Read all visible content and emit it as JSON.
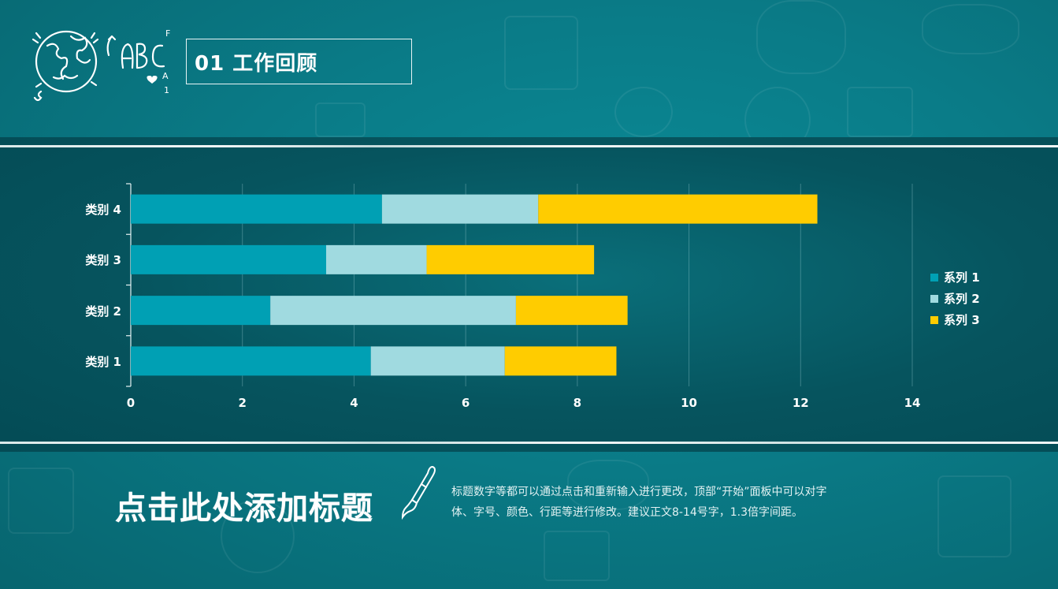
{
  "header": {
    "section_number": "01",
    "section_title": "01 工作回顾",
    "logo_text": "ABC"
  },
  "footer": {
    "heading": "点击此处添加标题",
    "description_line1": "标题数字等都可以通过点击和重新输入进行更改，顶部“开始”面板中可以对字",
    "description_line2": "体、字号、颜色、行距等进行修改。建议正文8-14号字，1.3倍字间距。"
  },
  "colors": {
    "background": "#0a7b87",
    "panel": "#054f59",
    "series1": "#00a0b4",
    "series2": "#a0dae0",
    "series3": "#ffcc00"
  },
  "chart_data": {
    "type": "bar",
    "orientation": "horizontal",
    "stacked": true,
    "title": "",
    "xlabel": "",
    "ylabel": "",
    "categories": [
      "类别 1",
      "类别 2",
      "类别 3",
      "类别 4"
    ],
    "series": [
      {
        "name": "系列 1",
        "color": "#00a0b4",
        "values": [
          4.3,
          2.5,
          3.5,
          4.5
        ]
      },
      {
        "name": "系列 2",
        "color": "#a0dae0",
        "values": [
          2.4,
          4.4,
          1.8,
          2.8
        ]
      },
      {
        "name": "系列 3",
        "color": "#ffcc00",
        "values": [
          2,
          2,
          3,
          5
        ]
      }
    ],
    "xlim": [
      0,
      14
    ],
    "x_ticks": [
      "0",
      "2",
      "4",
      "6",
      "8",
      "10",
      "12",
      "14"
    ],
    "grid": true,
    "legend_position": "right"
  }
}
